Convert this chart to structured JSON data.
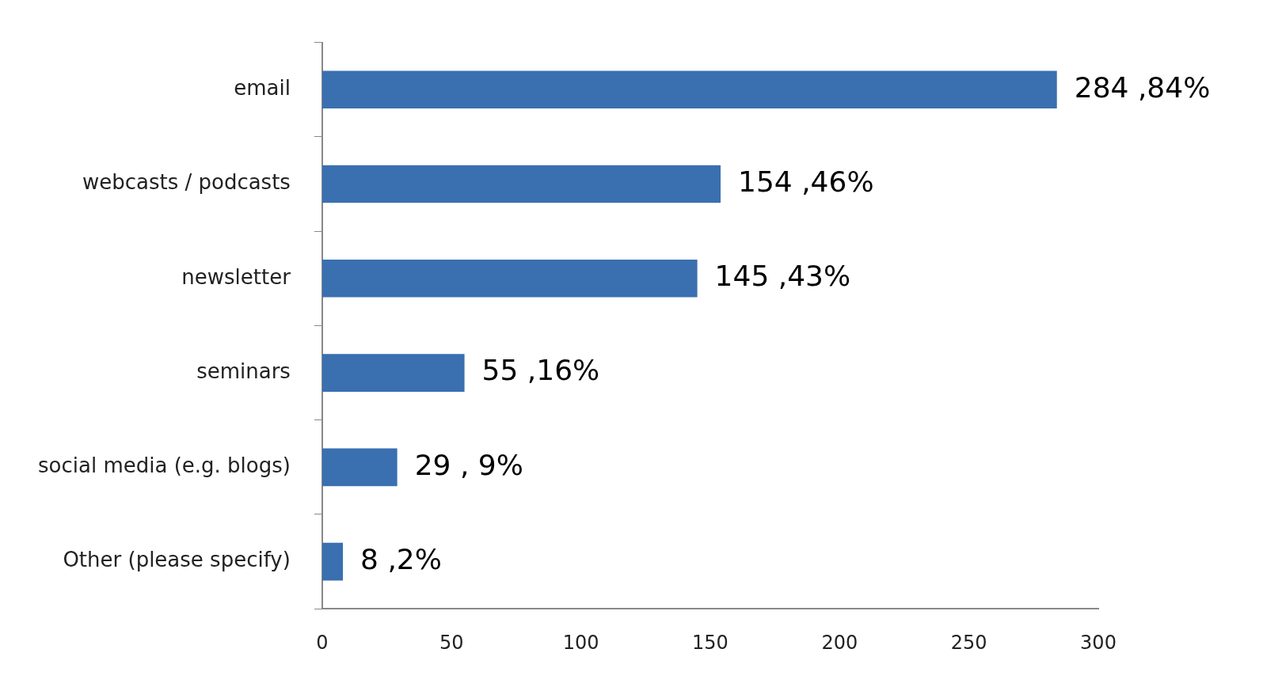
{
  "chart_data": {
    "type": "bar",
    "orientation": "horizontal",
    "categories": [
      "email",
      "webcasts / podcasts",
      "newsletter",
      "seminars",
      "social media (e.g. blogs)",
      "Other (please specify)"
    ],
    "values": [
      284,
      154,
      145,
      55,
      29,
      8
    ],
    "value_labels": [
      "284 ,84%",
      "154 ,46%",
      "145 ,43%",
      "55 ,16%",
      "29 , 9%",
      "8 ,2%"
    ],
    "color": "#3a6fb0",
    "xlim": [
      0,
      300
    ],
    "xticks": [
      0,
      50,
      100,
      150,
      200,
      250,
      300
    ],
    "grid": false,
    "legend": false
  }
}
